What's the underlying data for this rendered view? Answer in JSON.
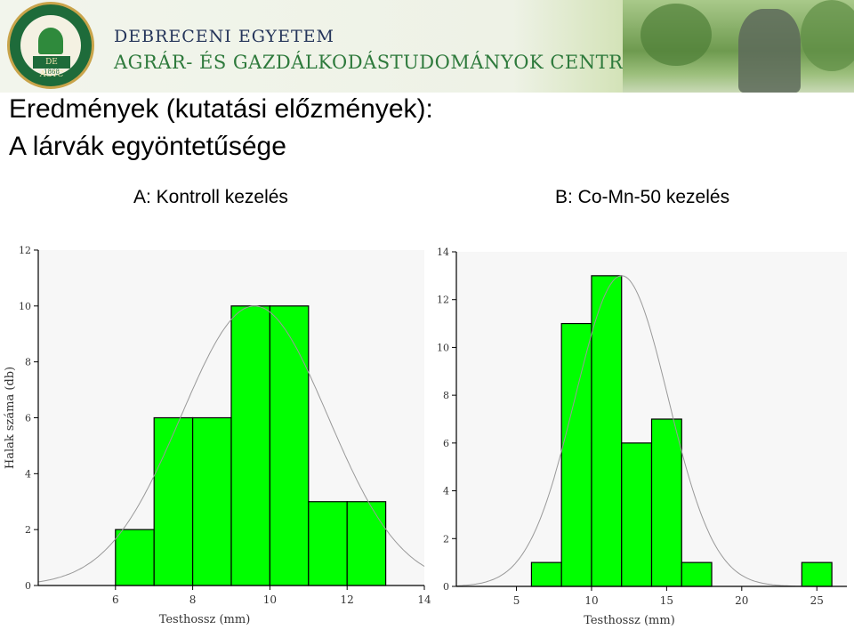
{
  "banner": {
    "logo_text": "DE AGTC",
    "logo_year": "1868",
    "university_line1": "DEBRECENI EGYETEM",
    "university_line2": "AGRÁR- ÉS GAZDÁLKODÁSTUDOMÁNYOK CENTRUMA"
  },
  "slide": {
    "title_line1": "Eredmények (kutatási előzmények):",
    "title_line2": "A lárvák egyöntetűsége",
    "subtitle_a": "A: Kontroll kezelés",
    "subtitle_b": "B: Co-Mn-50 kezelés"
  },
  "colors": {
    "bar_fill": "#00ff00",
    "bar_stroke": "#000000",
    "curve": "#999999"
  },
  "chart_data": [
    {
      "type": "bar",
      "histogram": true,
      "bins": [
        [
          6,
          7
        ],
        [
          7,
          8
        ],
        [
          8,
          9
        ],
        [
          9,
          10
        ],
        [
          10,
          11
        ],
        [
          11,
          12
        ],
        [
          12,
          13
        ]
      ],
      "values": [
        2,
        6,
        6,
        10,
        10,
        3,
        3
      ],
      "xlabel": "Testhossz (mm)",
      "ylabel": "Halak száma (db)",
      "xlim": [
        4,
        14
      ],
      "ylim": [
        0,
        12
      ],
      "xticks": [
        6,
        8,
        10,
        12,
        14
      ],
      "yticks": [
        0,
        2,
        4,
        6,
        8,
        10,
        12
      ],
      "normal_curve": {
        "mean": 9.6,
        "sd": 1.9,
        "peak": 10
      },
      "grid": false
    },
    {
      "type": "bar",
      "histogram": true,
      "bins": [
        [
          6,
          8
        ],
        [
          8,
          10
        ],
        [
          10,
          12
        ],
        [
          12,
          14
        ],
        [
          14,
          16
        ],
        [
          16,
          18
        ],
        [
          24,
          26
        ]
      ],
      "values": [
        1,
        11,
        13,
        6,
        7,
        1,
        1
      ],
      "xlabel": "Testhossz (mm)",
      "ylabel": "",
      "xlim": [
        1,
        27
      ],
      "ylim": [
        0,
        14
      ],
      "xticks": [
        5,
        10,
        15,
        20,
        25
      ],
      "yticks": [
        0,
        2,
        4,
        6,
        8,
        10,
        12,
        14
      ],
      "normal_curve": {
        "mean": 12,
        "sd": 3.1,
        "peak": 13
      },
      "grid": false
    }
  ]
}
